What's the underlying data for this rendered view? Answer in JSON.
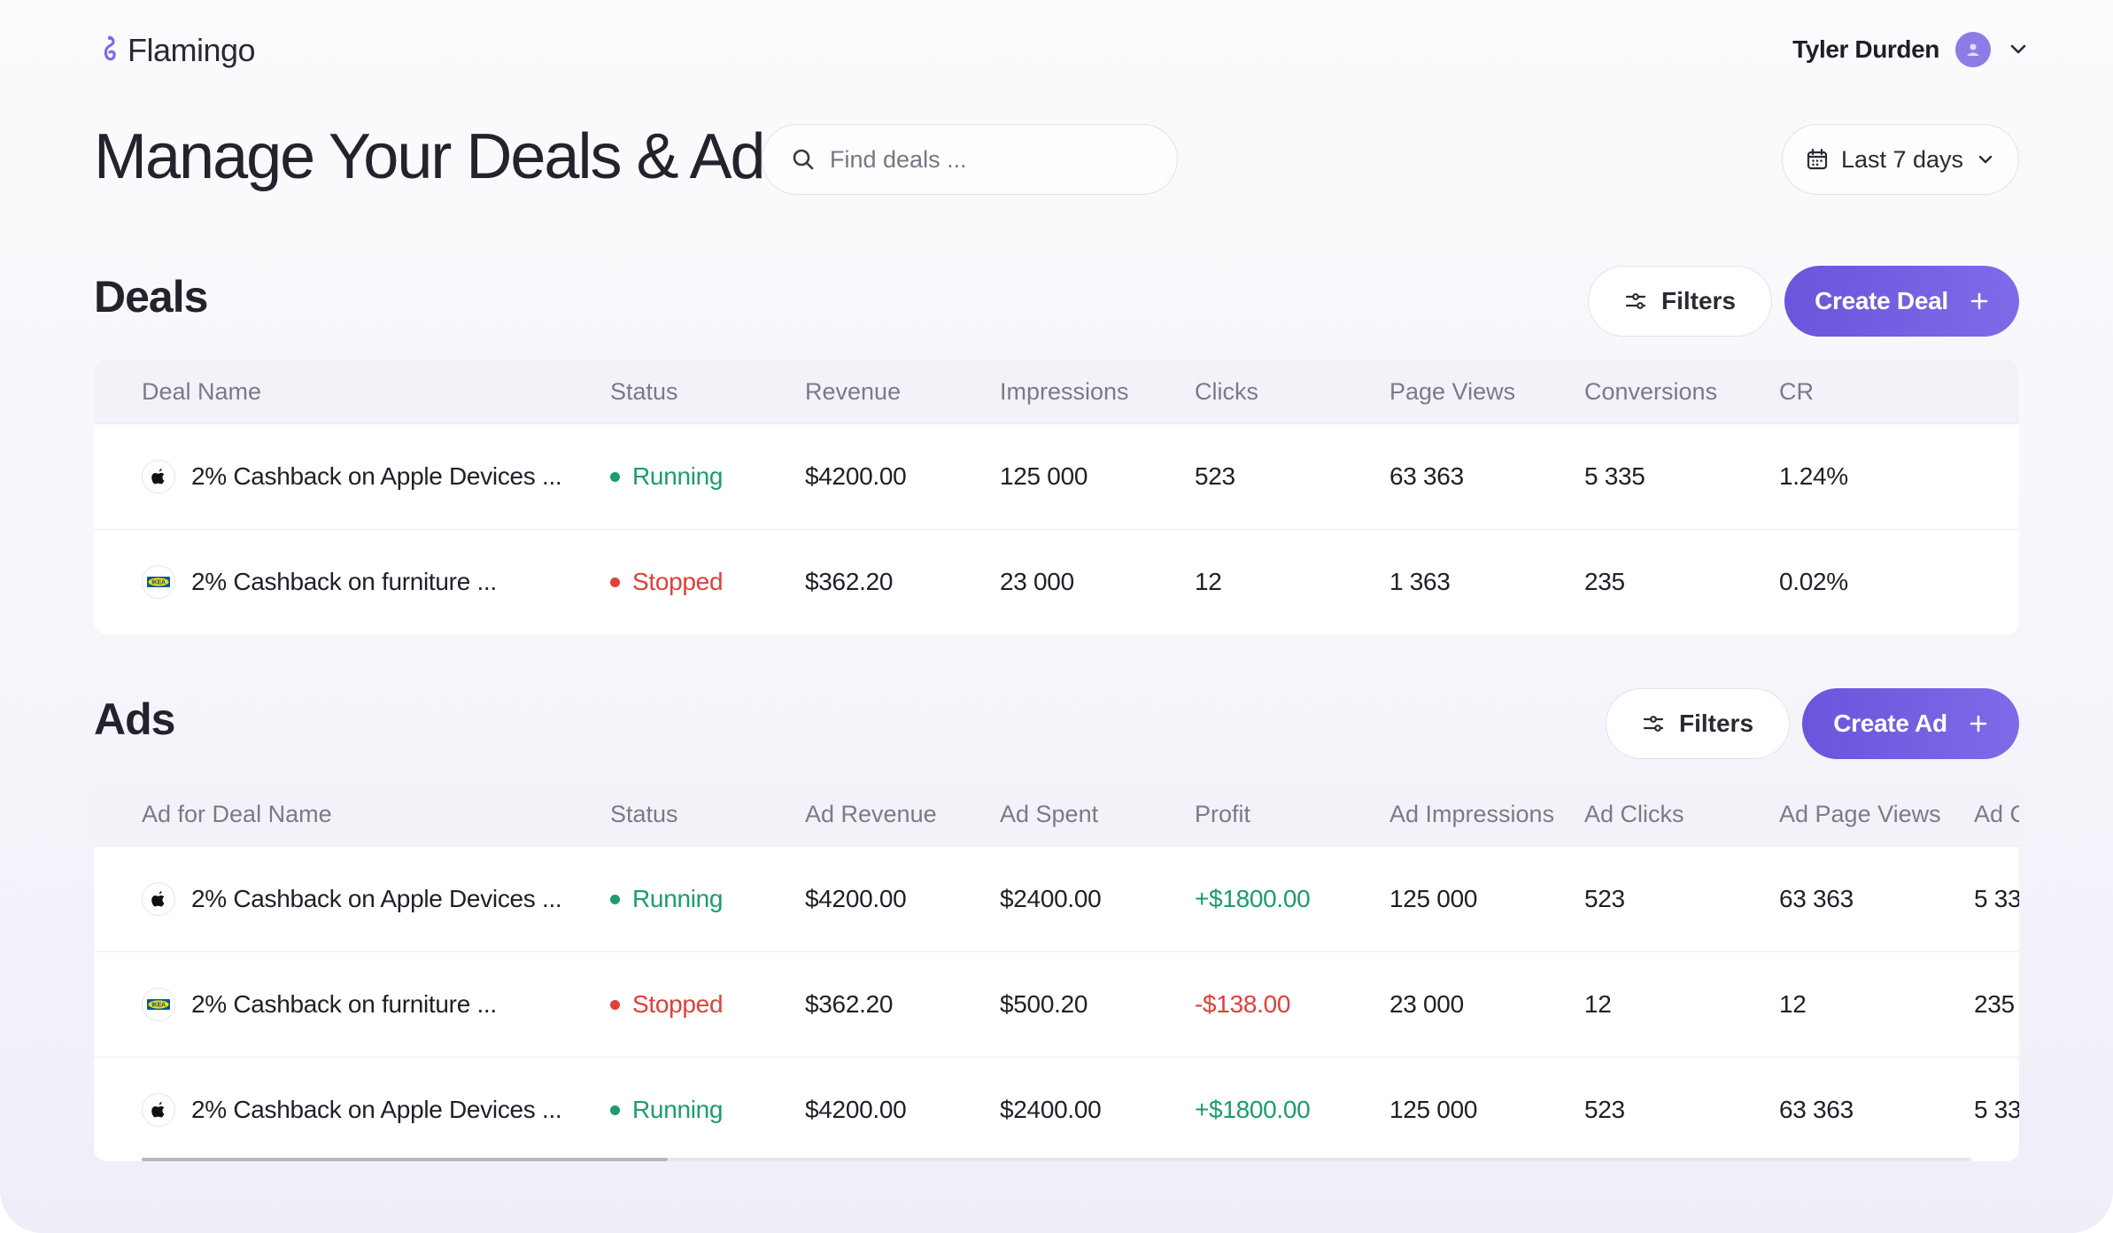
{
  "header": {
    "logo_text": "Flamingo",
    "user_name": "Tyler Durden"
  },
  "page": {
    "title": "Manage Your Deals & Ads",
    "search_placeholder": "Find deals ...",
    "date_range": "Last 7 days"
  },
  "deals": {
    "title": "Deals",
    "filters_label": "Filters",
    "create_label": "Create Deal",
    "columns": [
      "Deal Name",
      "Status",
      "Revenue",
      "Impressions",
      "Clicks",
      "Page Views",
      "Conversions",
      "CR"
    ],
    "rows": [
      {
        "brand": "apple-logo-icon",
        "name": "2% Cashback on Apple Devices ...",
        "status": "Running",
        "revenue": "$4200.00",
        "impressions": "125 000",
        "clicks": "523",
        "page_views": "63 363",
        "conversions": "5 335",
        "cr": "1.24%"
      },
      {
        "brand": "ikea-logo-icon",
        "name": "2% Cashback on furniture ...",
        "status": "Stopped",
        "revenue": "$362.20",
        "impressions": "23 000",
        "clicks": "12",
        "page_views": "1 363",
        "conversions": "235",
        "cr": "0.02%"
      }
    ]
  },
  "ads": {
    "title": "Ads",
    "filters_label": "Filters",
    "create_label": "Create Ad",
    "columns": [
      "Ad for Deal Name",
      "Status",
      "Ad Revenue",
      "Ad Spent",
      "Profit",
      "Ad Impressions",
      "Ad Clicks",
      "Ad Page Views",
      "Ad C"
    ],
    "rows": [
      {
        "brand": "apple-logo-icon",
        "name": "2% Cashback on Apple Devices ...",
        "status": "Running",
        "revenue": "$4200.00",
        "spent": "$2400.00",
        "profit": "+$1800.00",
        "impressions": "125 000",
        "clicks": "523",
        "page_views": "63 363",
        "conv": "5 33"
      },
      {
        "brand": "ikea-logo-icon",
        "name": "2% Cashback on furniture ...",
        "status": "Stopped",
        "revenue": "$362.20",
        "spent": "$500.20",
        "profit": "-$138.00",
        "impressions": "23 000",
        "clicks": "12",
        "page_views": "12",
        "conv": "235"
      },
      {
        "brand": "apple-logo-icon",
        "name": "2% Cashback on Apple Devices ...",
        "status": "Running",
        "revenue": "$4200.00",
        "spent": "$2400.00",
        "profit": "+$1800.00",
        "impressions": "125 000",
        "clicks": "523",
        "page_views": "63 363",
        "conv": "5 33"
      }
    ]
  },
  "colors": {
    "accent": "#6a55dc",
    "running": "#1a9e6a",
    "stopped": "#e0403a",
    "profit_positive": "#1a9e6a",
    "profit_negative": "#e0403a"
  }
}
